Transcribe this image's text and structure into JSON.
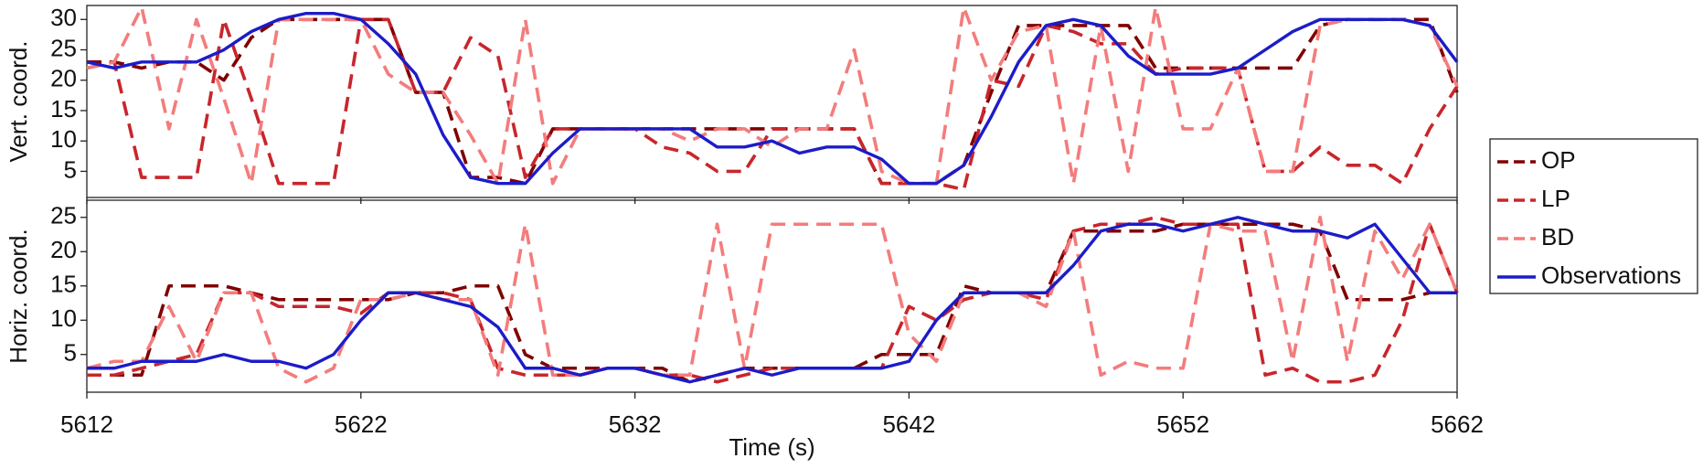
{
  "chart_data": [
    {
      "type": "line",
      "ylabel": "Vert. coord.",
      "legend": "right",
      "x": [
        5612,
        5613,
        5614,
        5615,
        5616,
        5617,
        5618,
        5619,
        5620,
        5621,
        5622,
        5623,
        5624,
        5625,
        5626,
        5627,
        5628,
        5629,
        5630,
        5631,
        5632,
        5633,
        5634,
        5635,
        5636,
        5637,
        5638,
        5639,
        5640,
        5641,
        5642,
        5643,
        5644,
        5645,
        5646,
        5647,
        5648,
        5649,
        5650,
        5651,
        5652,
        5653,
        5654,
        5655,
        5656,
        5657,
        5658,
        5659,
        5660,
        5661,
        5662
      ],
      "xlim": [
        5612,
        5662
      ],
      "xticks": [
        5612,
        5622,
        5632,
        5642,
        5652,
        5662
      ],
      "ylim": [
        0.7,
        32.3
      ],
      "yticks": [
        5,
        10,
        15,
        20,
        25,
        30
      ],
      "series": [
        {
          "name": "OP",
          "color": "#800000",
          "dash": true,
          "values": [
            23,
            23,
            22,
            23,
            23,
            20,
            27,
            30,
            30,
            30,
            30,
            30,
            18,
            18,
            4,
            4,
            3,
            12,
            12,
            12,
            12,
            12,
            12,
            12,
            12,
            12,
            12,
            12,
            12,
            3,
            3,
            3,
            6,
            18,
            29,
            29,
            29,
            29,
            29,
            22,
            22,
            22,
            22,
            22,
            22,
            29,
            30,
            30,
            30,
            30,
            18
          ]
        },
        {
          "name": "LP",
          "color": "#c8262c",
          "dash": true,
          "values": [
            22,
            23,
            4,
            4,
            4,
            30,
            17,
            3,
            3,
            3,
            30,
            30,
            18,
            18,
            27,
            24,
            4,
            12,
            12,
            12,
            12,
            9,
            8,
            5,
            5,
            12,
            12,
            12,
            12,
            3,
            3,
            3,
            2,
            20,
            19,
            29,
            28,
            26,
            26,
            21,
            22,
            22,
            22,
            5,
            5,
            9,
            6,
            6,
            3,
            12,
            19
          ]
        },
        {
          "name": "BD",
          "color": "#f47c7c",
          "dash": true,
          "values": [
            22,
            23,
            32,
            12,
            30,
            17,
            3,
            30,
            30,
            30,
            30,
            21,
            18,
            18,
            11,
            3,
            30,
            3,
            12,
            12,
            12,
            12,
            10,
            12,
            12,
            9,
            12,
            12,
            25,
            5,
            3,
            3,
            32,
            20,
            28,
            29,
            3,
            29,
            5,
            32,
            12,
            12,
            22,
            5,
            5,
            29,
            30,
            30,
            30,
            29,
            19
          ]
        },
        {
          "name": "Observations",
          "color": "#1c1cc8",
          "dash": false,
          "values": [
            23,
            22,
            23,
            23,
            23,
            25,
            28,
            30,
            31,
            31,
            30,
            26,
            21,
            11,
            4,
            3,
            3,
            8,
            12,
            12,
            12,
            12,
            12,
            9,
            9,
            10,
            8,
            9,
            9,
            7,
            3,
            3,
            6,
            14,
            23,
            29,
            30,
            29,
            24,
            21,
            21,
            21,
            22,
            25,
            28,
            30,
            30,
            30,
            30,
            29,
            23
          ]
        }
      ]
    },
    {
      "type": "line",
      "ylabel": "Horiz. coord.",
      "xlabel": "Time (s)",
      "x": [
        5612,
        5613,
        5614,
        5615,
        5616,
        5617,
        5618,
        5619,
        5620,
        5621,
        5622,
        5623,
        5624,
        5625,
        5626,
        5627,
        5628,
        5629,
        5630,
        5631,
        5632,
        5633,
        5634,
        5635,
        5636,
        5637,
        5638,
        5639,
        5640,
        5641,
        5642,
        5643,
        5644,
        5645,
        5646,
        5647,
        5648,
        5649,
        5650,
        5651,
        5652,
        5653,
        5654,
        5655,
        5656,
        5657,
        5658,
        5659,
        5660,
        5661,
        5662
      ],
      "xlim": [
        5612,
        5662
      ],
      "xticks": [
        5612,
        5622,
        5632,
        5642,
        5652,
        5662
      ],
      "ylim": [
        -0.5,
        27.5
      ],
      "yticks": [
        5,
        10,
        15,
        20,
        25
      ],
      "series": [
        {
          "color": "#800000",
          "dash": true,
          "values": [
            2,
            2,
            2,
            15,
            15,
            15,
            14,
            13,
            13,
            13,
            13,
            13,
            14,
            14,
            15,
            15,
            5,
            3,
            3,
            3,
            3,
            3,
            1,
            2,
            3,
            3,
            3,
            3,
            3,
            5,
            5,
            5,
            15,
            14,
            14,
            14,
            23,
            23,
            23,
            23,
            24,
            24,
            24,
            24,
            24,
            23,
            13,
            13,
            13,
            14,
            14
          ]
        },
        {
          "color": "#c8262c",
          "dash": true,
          "values": [
            2,
            2,
            3,
            4,
            5,
            14,
            14,
            12,
            12,
            12,
            11,
            14,
            14,
            14,
            13,
            3,
            2,
            2,
            2,
            3,
            3,
            2,
            2,
            1,
            2,
            3,
            3,
            3,
            3,
            3,
            12,
            10,
            13,
            14,
            14,
            13,
            23,
            24,
            24,
            25,
            24,
            24,
            24,
            2,
            3,
            1,
            1,
            2,
            10,
            24,
            14
          ]
        },
        {
          "color": "#f47c7c",
          "dash": true,
          "values": [
            3,
            4,
            4,
            12,
            4,
            14,
            14,
            3,
            1,
            3,
            13,
            13,
            14,
            13,
            13,
            2,
            24,
            2,
            2,
            3,
            3,
            2,
            2,
            24,
            3,
            24,
            24,
            24,
            24,
            24,
            8,
            4,
            14,
            14,
            14,
            12,
            23,
            2,
            4,
            3,
            3,
            24,
            23,
            23,
            4,
            25,
            4,
            23,
            16,
            24,
            14
          ]
        },
        {
          "color": "#1c1cc8",
          "dash": false,
          "values": [
            3,
            3,
            4,
            4,
            4,
            5,
            4,
            4,
            3,
            5,
            10,
            14,
            14,
            13,
            12,
            9,
            3,
            3,
            2,
            3,
            3,
            2,
            1,
            2,
            3,
            2,
            3,
            3,
            3,
            3,
            4,
            10,
            14,
            14,
            14,
            14,
            18,
            23,
            24,
            24,
            23,
            24,
            25,
            24,
            23,
            23,
            22,
            24,
            19,
            14,
            14
          ]
        }
      ]
    }
  ]
}
